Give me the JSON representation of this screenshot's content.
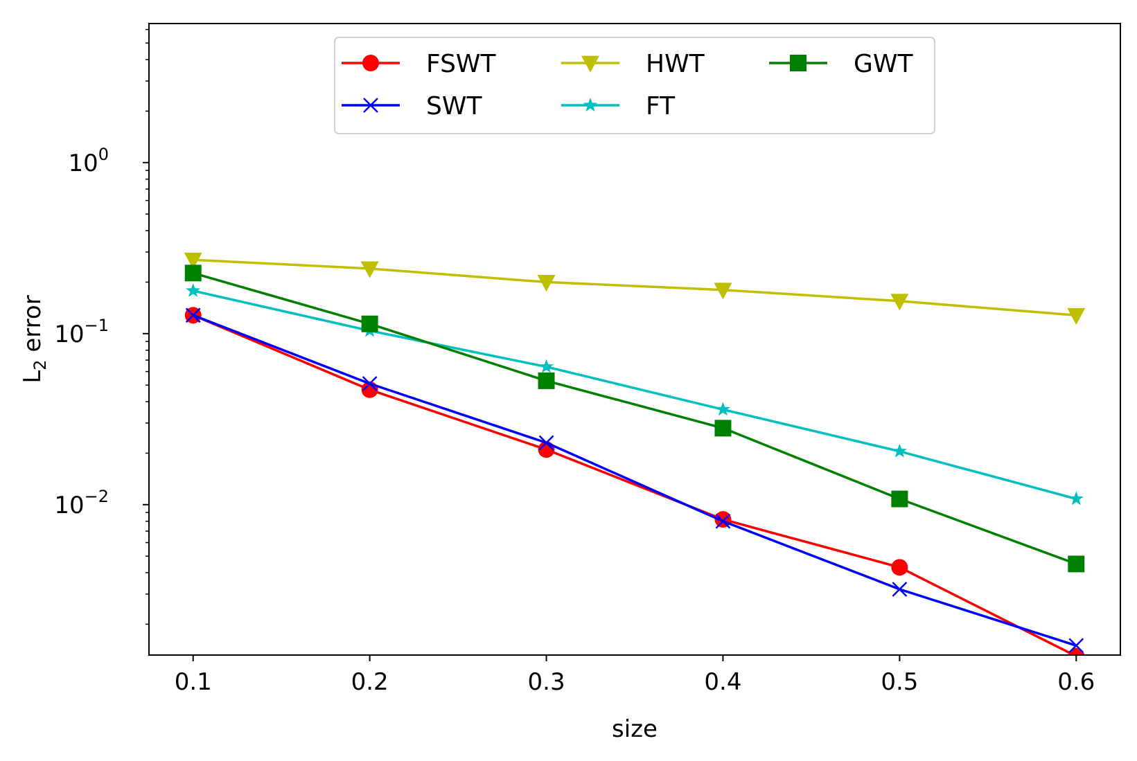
{
  "chart_data": {
    "type": "line",
    "xlabel": "size",
    "ylabel_main": "L",
    "ylabel_sub": "2",
    "ylabel_rest": " error",
    "yscale": "log",
    "xlim": [
      0.075,
      0.625
    ],
    "ylim": [
      0.00132,
      6.5
    ],
    "xticks": [
      {
        "value": 0.1,
        "label": "0.1"
      },
      {
        "value": 0.2,
        "label": "0.2"
      },
      {
        "value": 0.3,
        "label": "0.3"
      },
      {
        "value": 0.4,
        "label": "0.4"
      },
      {
        "value": 0.5,
        "label": "0.5"
      },
      {
        "value": 0.6,
        "label": "0.6"
      }
    ],
    "yticks": [
      {
        "value": 1,
        "base": "10",
        "exp": "0"
      },
      {
        "value": 0.1,
        "base": "10",
        "exp": "−1"
      },
      {
        "value": 0.01,
        "base": "10",
        "exp": "−2"
      }
    ],
    "x": [
      0.1,
      0.2,
      0.3,
      0.4,
      0.5,
      0.6
    ],
    "legend_location": "upper center",
    "series": [
      {
        "name": "FSWT",
        "color": "#ff0000",
        "marker": "circle",
        "values": [
          0.128,
          0.047,
          0.021,
          0.0082,
          0.0043,
          0.0013
        ]
      },
      {
        "name": "SWT",
        "color": "#0000ff",
        "marker": "x",
        "values": [
          0.128,
          0.051,
          0.023,
          0.008,
          0.0032,
          0.0015
        ]
      },
      {
        "name": "HWT",
        "color": "#bfbf00",
        "marker": "triangle-down",
        "values": [
          0.27,
          0.24,
          0.2,
          0.18,
          0.155,
          0.128
        ]
      },
      {
        "name": "FT",
        "color": "#00bfbf",
        "marker": "star",
        "values": [
          0.178,
          0.104,
          0.064,
          0.036,
          0.0205,
          0.0108
        ]
      },
      {
        "name": "GWT",
        "color": "#008000",
        "marker": "square",
        "values": [
          0.226,
          0.114,
          0.053,
          0.028,
          0.0108,
          0.0045
        ]
      }
    ]
  }
}
